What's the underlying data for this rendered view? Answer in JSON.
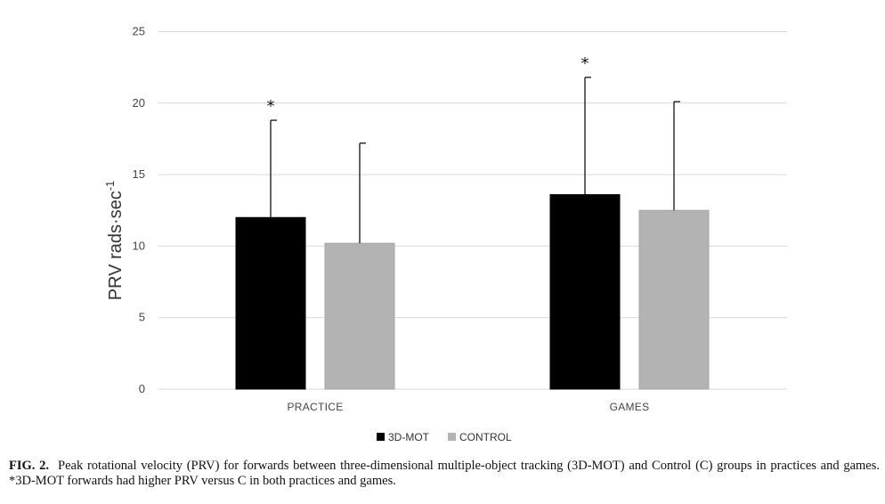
{
  "chart_data": {
    "type": "bar",
    "categories": [
      "PRACTICE",
      "GAMES"
    ],
    "series": [
      {
        "name": "3D-MOT",
        "values": [
          12.0,
          13.6
        ],
        "error": [
          6.8,
          8.2
        ],
        "color": "#000000"
      },
      {
        "name": "CONTROL",
        "values": [
          10.2,
          12.5
        ],
        "error": [
          7.0,
          7.6
        ],
        "color": "#b3b3b3"
      }
    ],
    "significance": [
      "*",
      "*"
    ],
    "ylabel": "PRV rads·sec",
    "ylabel_sup": "-1",
    "ylim": [
      0,
      25
    ],
    "yticks": [
      "0",
      "5",
      "10",
      "15",
      "20",
      "25"
    ],
    "grid": true,
    "legend_position": "bottom"
  },
  "caption": {
    "label": "FIG. 2.",
    "text": "Peak rotational velocity (PRV) for forwards between three-dimensional multiple-object tracking (3D-MOT) and Control (C) groups in practices and games. *3D-MOT forwards had higher PRV versus C in both practices and games."
  }
}
